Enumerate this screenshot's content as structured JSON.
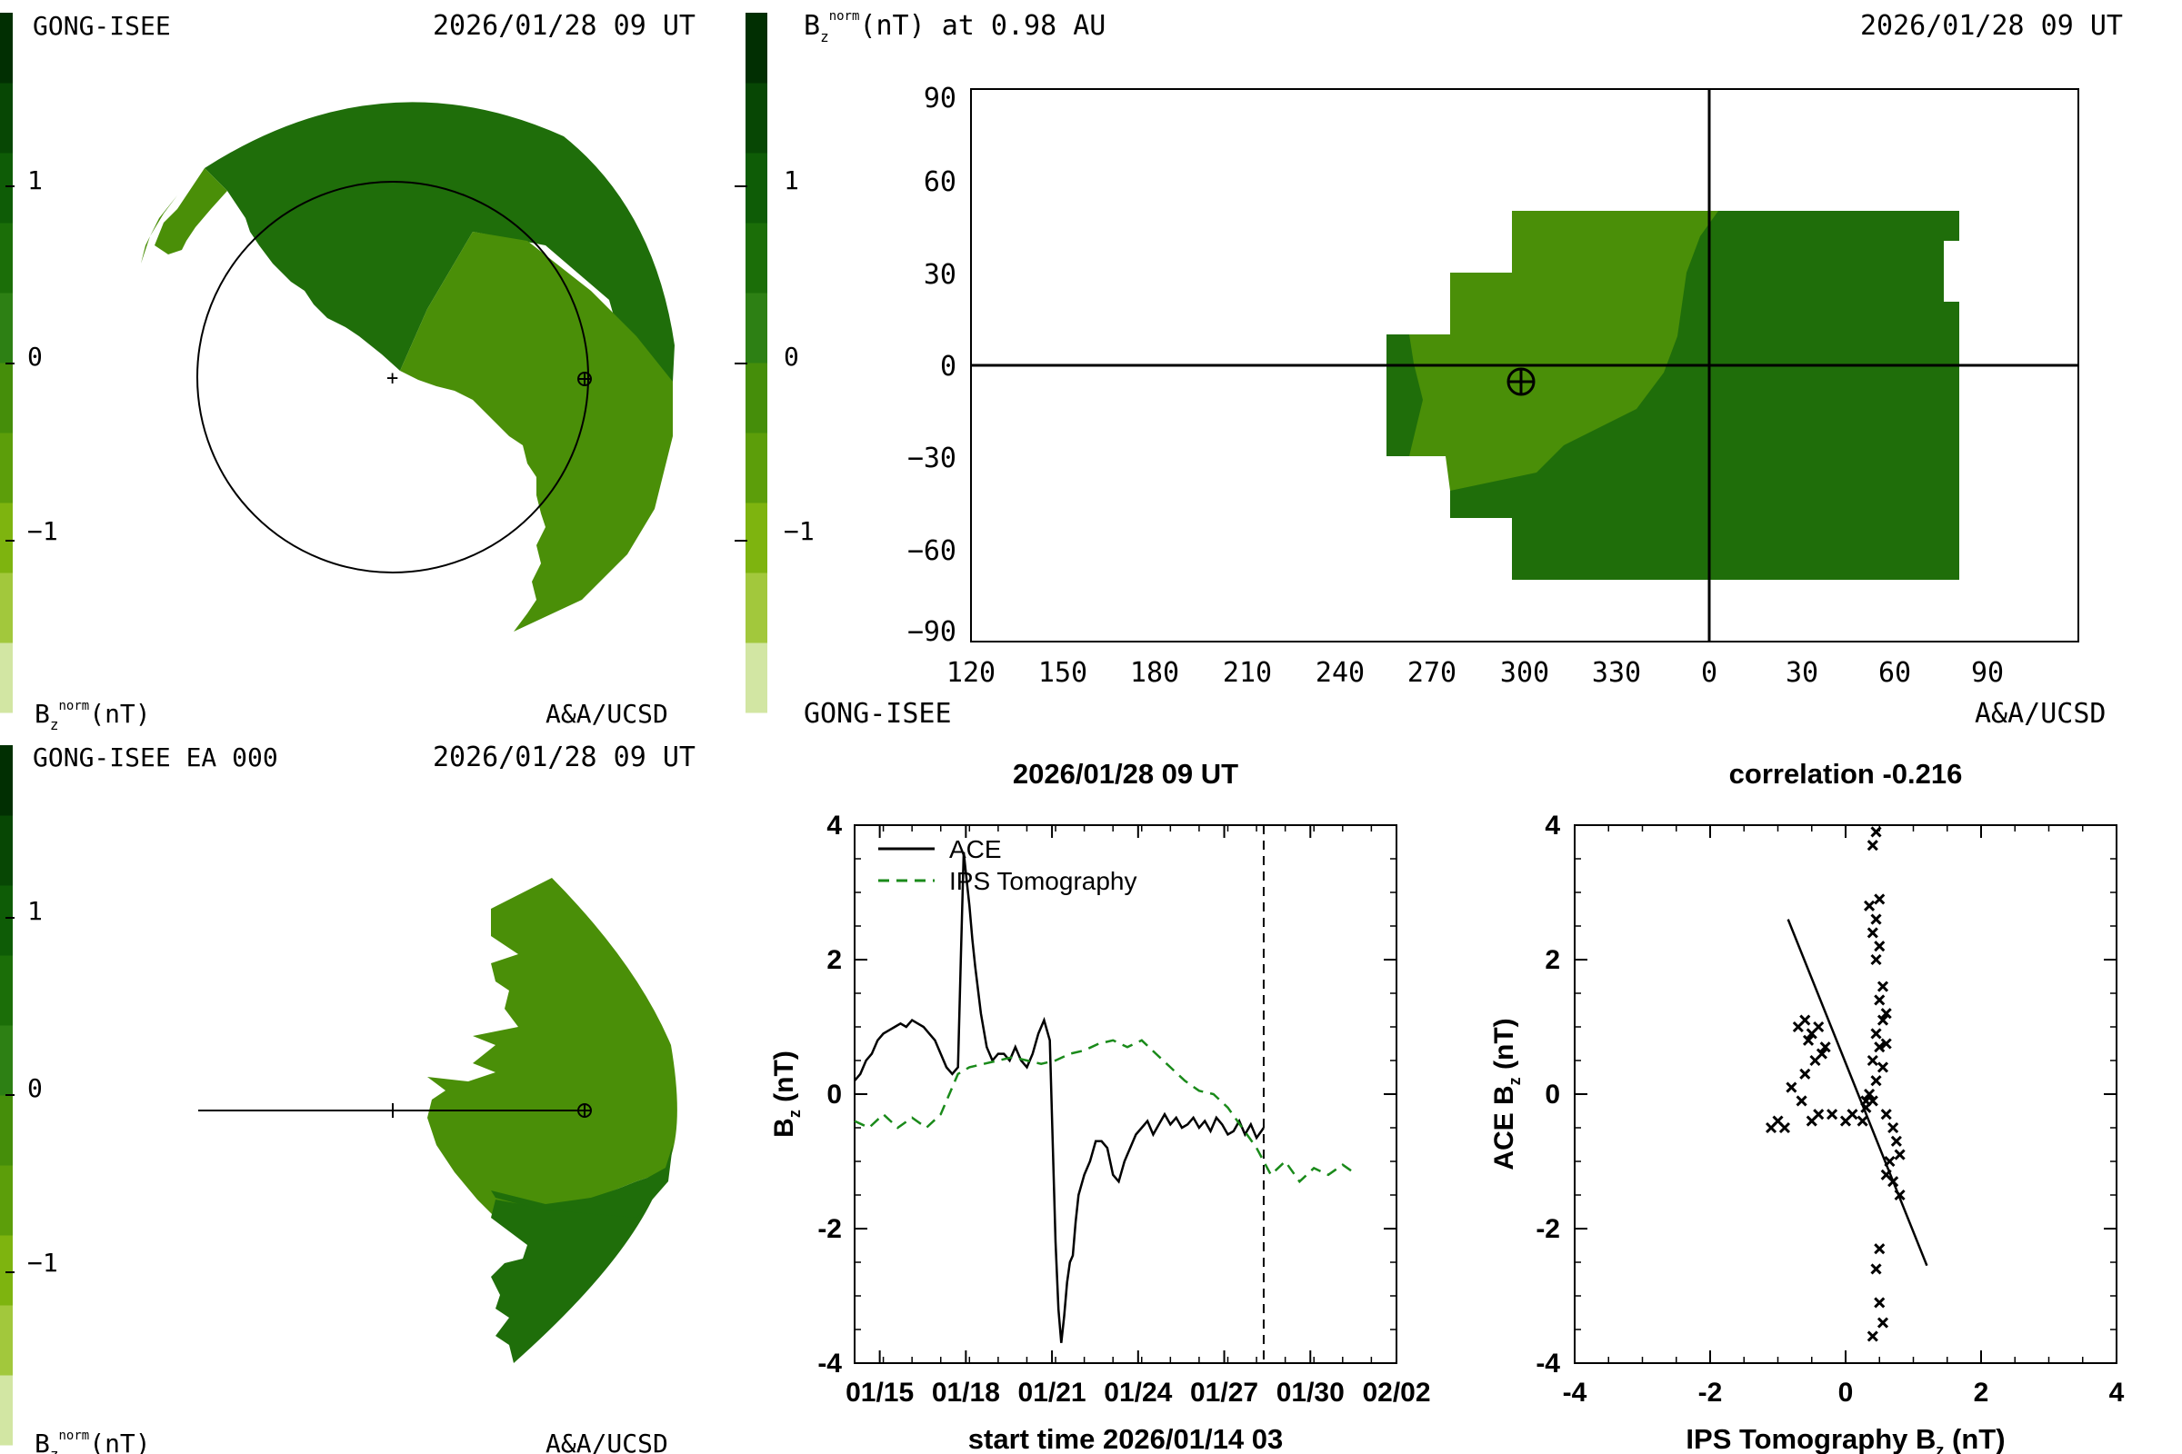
{
  "colors": {
    "scale": [
      "#d2e6a3",
      "#a2c83c",
      "#7eb40f",
      "#5c9e0a",
      "#458e0a",
      "#2d8014",
      "#1b6e08",
      "#0e5c06",
      "#074704",
      "#012f02"
    ],
    "sectors": {
      "light": "#4a8f08",
      "dark": "#1f6e0a",
      "pale": "#b8d87a"
    },
    "ips_line": "#1a8a1a"
  },
  "panel_tl": {
    "left_label": "GONG-ISEE",
    "date": "2026/01/28 09 UT",
    "ticks": [
      "1",
      "0",
      "−1"
    ],
    "unit_label": "(nT)",
    "credit": "A&A/UCSD"
  },
  "panel_tr": {
    "title_tail": "(nT) at 0.98 AU",
    "date": "2026/01/28 09 UT",
    "ticks": [
      "1",
      "0",
      "−1"
    ],
    "y_ticks": [
      "90",
      "60",
      "30",
      "0",
      "−30",
      "−60",
      "−90"
    ],
    "x_ticks": [
      "120",
      "150",
      "180",
      "210",
      "240",
      "270",
      "300",
      "330",
      "0",
      "30",
      "60",
      "90"
    ],
    "left_label": "GONG-ISEE",
    "credit": "A&A/UCSD"
  },
  "panel_bl": {
    "left_label": "GONG-ISEE EA 000",
    "date": "2026/01/28 09 UT",
    "ticks": [
      "1",
      "0",
      "−1"
    ],
    "unit_label": "(nT)",
    "credit": "A&A/UCSD"
  },
  "chart_data": [
    {
      "type": "line",
      "title": "2026/01/28 09 UT",
      "xlabel": "start time 2026/01/14 03",
      "ylabel": "B",
      "ylabel_sub": "z",
      "ylabel_tail": "(nT)",
      "x_tick_labels": [
        "01/15",
        "01/18",
        "01/21",
        "01/24",
        "01/27",
        "01/30",
        "02/02"
      ],
      "x_tick_days": [
        0.875,
        3.875,
        6.875,
        9.875,
        12.875,
        15.875,
        18.875
      ],
      "xlim": [
        0,
        18.875
      ],
      "ylim": [
        -4,
        4
      ],
      "y_ticks": [
        "4",
        "2",
        "0",
        "-2",
        "-4"
      ],
      "current_time_day": 14.25,
      "series": [
        {
          "name": "ACE",
          "style": "solid",
          "x": [
            0.0,
            0.2,
            0.4,
            0.6,
            0.8,
            1.0,
            1.2,
            1.4,
            1.6,
            1.8,
            2.0,
            2.2,
            2.4,
            2.6,
            2.8,
            3.0,
            3.2,
            3.4,
            3.6,
            3.7,
            3.8,
            3.9,
            4.0,
            4.1,
            4.2,
            4.4,
            4.6,
            4.8,
            5.0,
            5.2,
            5.4,
            5.6,
            5.8,
            6.0,
            6.2,
            6.4,
            6.6,
            6.8,
            7.0,
            7.1,
            7.2,
            7.3,
            7.4,
            7.5,
            7.6,
            7.7,
            7.8,
            8.0,
            8.2,
            8.4,
            8.6,
            8.8,
            9.0,
            9.2,
            9.4,
            9.6,
            9.8,
            10.0,
            10.2,
            10.4,
            10.6,
            10.8,
            11.0,
            11.2,
            11.4,
            11.6,
            11.8,
            12.0,
            12.2,
            12.4,
            12.6,
            12.8,
            13.0,
            13.2,
            13.4,
            13.6,
            13.8,
            14.0,
            14.25
          ],
          "y": [
            0.2,
            0.3,
            0.5,
            0.6,
            0.8,
            0.9,
            0.95,
            1.0,
            1.05,
            1.0,
            1.1,
            1.05,
            1.0,
            0.9,
            0.8,
            0.6,
            0.4,
            0.3,
            0.4,
            2.0,
            3.6,
            3.2,
            2.8,
            2.3,
            1.9,
            1.2,
            0.7,
            0.5,
            0.6,
            0.6,
            0.5,
            0.7,
            0.5,
            0.4,
            0.6,
            0.9,
            1.1,
            0.8,
            -2.2,
            -3.2,
            -3.7,
            -3.3,
            -2.8,
            -2.5,
            -2.4,
            -1.9,
            -1.5,
            -1.2,
            -1.0,
            -0.7,
            -0.7,
            -0.8,
            -1.2,
            -1.3,
            -1.0,
            -0.8,
            -0.6,
            -0.5,
            -0.4,
            -0.6,
            -0.45,
            -0.3,
            -0.45,
            -0.35,
            -0.5,
            -0.45,
            -0.35,
            -0.5,
            -0.4,
            -0.55,
            -0.35,
            -0.45,
            -0.6,
            -0.55,
            -0.4,
            -0.6,
            -0.45,
            -0.65,
            -0.5
          ]
        },
        {
          "name": "IPS Tomography",
          "style": "dashed",
          "x": [
            0.0,
            0.5,
            1.0,
            1.5,
            2.0,
            2.5,
            3.0,
            3.3,
            3.6,
            4.0,
            4.5,
            5.0,
            5.5,
            6.0,
            6.5,
            7.0,
            7.5,
            8.0,
            8.5,
            9.0,
            9.5,
            10.0,
            10.5,
            11.0,
            11.5,
            12.0,
            12.5,
            13.0,
            13.5,
            14.0,
            14.5,
            15.0,
            15.5,
            16.0,
            16.5,
            17.0,
            17.5
          ],
          "y": [
            -0.4,
            -0.5,
            -0.3,
            -0.5,
            -0.35,
            -0.5,
            -0.3,
            0.0,
            0.3,
            0.4,
            0.45,
            0.5,
            0.55,
            0.5,
            0.45,
            0.5,
            0.6,
            0.65,
            0.75,
            0.8,
            0.7,
            0.8,
            0.6,
            0.4,
            0.2,
            0.05,
            0.0,
            -0.2,
            -0.5,
            -0.8,
            -1.2,
            -1.0,
            -1.3,
            -1.1,
            -1.2,
            -1.05,
            -1.2
          ]
        }
      ]
    },
    {
      "type": "scatter",
      "title": "correlation -0.216",
      "xlabel": "IPS Tomography B",
      "xlabel_sub": "z",
      "xlabel_tail": "(nT)",
      "ylabel": "ACE B",
      "ylabel_sub": "z",
      "ylabel_tail": "(nT)",
      "xlim": [
        -4,
        4
      ],
      "ylim": [
        -4,
        4
      ],
      "x_ticks": [
        "-4",
        "-2",
        "0",
        "2",
        "4"
      ],
      "y_ticks": [
        "4",
        "2",
        "0",
        "-2",
        "-4"
      ],
      "fit_line": [
        [
          -0.85,
          2.6
        ],
        [
          1.2,
          -2.55
        ]
      ],
      "points": [
        [
          0.45,
          3.9
        ],
        [
          0.4,
          3.7
        ],
        [
          0.5,
          2.9
        ],
        [
          0.35,
          2.8
        ],
        [
          0.45,
          2.6
        ],
        [
          0.4,
          2.4
        ],
        [
          0.5,
          2.2
        ],
        [
          0.45,
          2.0
        ],
        [
          0.55,
          1.6
        ],
        [
          0.5,
          1.4
        ],
        [
          0.6,
          1.2
        ],
        [
          0.55,
          1.1
        ],
        [
          0.45,
          0.9
        ],
        [
          0.5,
          0.7
        ],
        [
          0.6,
          0.75
        ],
        [
          0.4,
          0.5
        ],
        [
          0.55,
          0.4
        ],
        [
          0.45,
          0.2
        ],
        [
          -0.7,
          1.0
        ],
        [
          -0.6,
          1.1
        ],
        [
          -0.5,
          0.9
        ],
        [
          -0.55,
          0.8
        ],
        [
          -0.4,
          1.0
        ],
        [
          -0.35,
          0.6
        ],
        [
          -0.3,
          0.7
        ],
        [
          -0.45,
          0.5
        ],
        [
          -0.6,
          0.3
        ],
        [
          -0.8,
          0.1
        ],
        [
          -0.65,
          -0.1
        ],
        [
          -0.4,
          -0.3
        ],
        [
          -0.5,
          -0.4
        ],
        [
          -0.9,
          -0.5
        ],
        [
          -1.0,
          -0.4
        ],
        [
          -1.1,
          -0.5
        ],
        [
          -0.2,
          -0.3
        ],
        [
          0.0,
          -0.4
        ],
        [
          0.1,
          -0.3
        ],
        [
          0.25,
          -0.4
        ],
        [
          0.3,
          -0.2
        ],
        [
          0.4,
          -0.1
        ],
        [
          0.6,
          -0.3
        ],
        [
          0.7,
          -0.5
        ],
        [
          0.75,
          -0.7
        ],
        [
          0.8,
          -0.9
        ],
        [
          0.65,
          -1.0
        ],
        [
          0.7,
          -1.3
        ],
        [
          0.8,
          -1.5
        ],
        [
          0.6,
          -1.2
        ],
        [
          0.5,
          -2.3
        ],
        [
          0.45,
          -2.6
        ],
        [
          0.5,
          -3.1
        ],
        [
          0.55,
          -3.4
        ],
        [
          0.4,
          -3.6
        ],
        [
          0.35,
          0.0
        ],
        [
          0.3,
          -0.1
        ]
      ]
    }
  ]
}
